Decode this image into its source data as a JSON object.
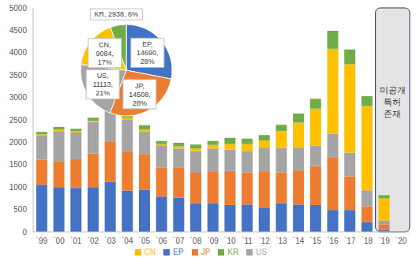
{
  "chart_data": [
    {
      "type": "bar",
      "stacked": true,
      "grid": false,
      "legend": "bottom",
      "categories": [
        "`99",
        "`00",
        "`01",
        "`02",
        "`03",
        "`04",
        "`05",
        "`06",
        "`07",
        "`08",
        "`09",
        "`10",
        "`11",
        "`12",
        "`13",
        "`14",
        "`15",
        "`16",
        "`17",
        "`18",
        "`19",
        "`20"
      ],
      "series": [
        {
          "name": "EP",
          "color": "#4472C4",
          "values": [
            1050,
            1000,
            980,
            1000,
            1120,
            920,
            940,
            790,
            760,
            640,
            640,
            600,
            610,
            540,
            640,
            610,
            600,
            490,
            490,
            220,
            40,
            null
          ]
        },
        {
          "name": "JP",
          "color": "#ED7D31",
          "values": [
            560,
            580,
            640,
            750,
            900,
            880,
            800,
            640,
            680,
            680,
            700,
            760,
            720,
            800,
            690,
            760,
            870,
            1180,
            750,
            350,
            130,
            null
          ]
        },
        {
          "name": "US",
          "color": "#A5A5A5",
          "values": [
            550,
            670,
            600,
            700,
            850,
            700,
            500,
            490,
            420,
            480,
            520,
            480,
            480,
            540,
            540,
            510,
            460,
            520,
            530,
            360,
            80,
            null
          ]
        },
        {
          "name": "CN",
          "color": "#FFC000",
          "values": [
            20,
            30,
            30,
            30,
            40,
            50,
            50,
            40,
            50,
            60,
            80,
            120,
            150,
            160,
            380,
            560,
            820,
            1900,
            1970,
            1880,
            500,
            null
          ]
        },
        {
          "name": "KR",
          "color": "#70AD47",
          "values": [
            50,
            60,
            50,
            70,
            100,
            100,
            90,
            70,
            80,
            90,
            90,
            140,
            120,
            120,
            140,
            200,
            220,
            400,
            330,
            220,
            70,
            null
          ]
        }
      ],
      "ylim": [
        0,
        5000
      ],
      "yticks": [
        0,
        500,
        1000,
        1500,
        2000,
        2500,
        3000,
        3500,
        4000,
        4500,
        5000
      ],
      "annotations": [
        {
          "lines": [
            "미공개",
            "특허",
            "존재"
          ],
          "x_range": [
            "`19",
            "`20"
          ]
        }
      ]
    },
    {
      "type": "pie",
      "categories": [
        "EP",
        "JP",
        "US",
        "CN",
        "KR"
      ],
      "values": [
        14690,
        14508,
        11113,
        9084,
        2938
      ],
      "value_labels": [
        "EP, 14690, 28%",
        "JP, 14508, 28%",
        "US, 11113, 21%",
        "CN, 9084, 17%",
        "KR, 2938, 6%"
      ],
      "colors": [
        "#4472C4",
        "#ED7D31",
        "#A5A5A5",
        "#FFC000",
        "#70AD47"
      ]
    }
  ]
}
